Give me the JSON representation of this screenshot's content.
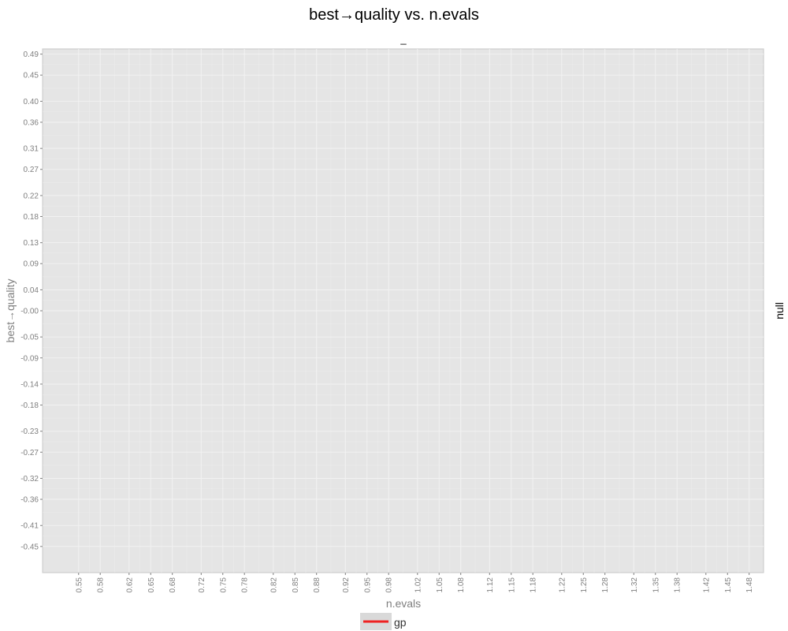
{
  "chart_data": {
    "type": "line",
    "title": "best→quality vs. n.evals",
    "facet_label": "_",
    "facet_side_label": "null",
    "xlabel": "n.evals",
    "ylabel": "best→quality",
    "x_ticks": [
      "0.55",
      "0.58",
      "0.62",
      "0.65",
      "0.68",
      "0.72",
      "0.75",
      "0.78",
      "0.82",
      "0.85",
      "0.88",
      "0.92",
      "0.95",
      "0.98",
      "1.02",
      "1.05",
      "1.08",
      "1.12",
      "1.15",
      "1.18",
      "1.22",
      "1.25",
      "1.28",
      "1.32",
      "1.35",
      "1.38",
      "1.42",
      "1.45",
      "1.48"
    ],
    "y_ticks": [
      "0.49",
      "0.45",
      "0.40",
      "0.36",
      "0.31",
      "0.27",
      "0.22",
      "0.18",
      "0.13",
      "0.09",
      "0.04",
      "-0.00",
      "-0.05",
      "-0.09",
      "-0.14",
      "-0.18",
      "-0.23",
      "-0.27",
      "-0.32",
      "-0.36",
      "-0.41",
      "-0.45"
    ],
    "xlim": [
      0.5,
      1.5
    ],
    "ylim": [
      -0.5,
      0.5
    ],
    "grid": true,
    "legend_position": "bottom",
    "series": [
      {
        "name": "gp",
        "color": "#ee2222",
        "x": [],
        "y": []
      }
    ],
    "colors": {
      "panel_background": "#e5e5e5",
      "grid_line": "#f2f2f2",
      "legend_key_background": "#d9d9d9"
    }
  }
}
